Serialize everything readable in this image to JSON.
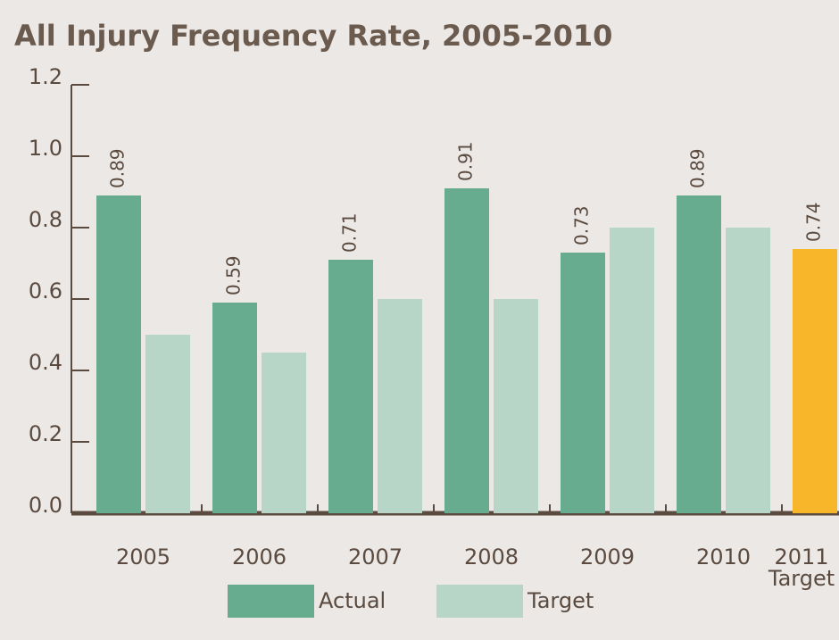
{
  "chart_data": {
    "type": "bar",
    "title": "All Injury Frequency Rate, 2005-2010",
    "categories": [
      "2005",
      "2006",
      "2007",
      "2008",
      "2009",
      "2010",
      "2011 Target"
    ],
    "series": [
      {
        "name": "Actual",
        "color": "#68ac8f",
        "values": [
          0.89,
          0.59,
          0.71,
          0.91,
          0.73,
          0.89,
          null
        ]
      },
      {
        "name": "Target",
        "color": "#b8d6c7",
        "values": [
          0.5,
          0.45,
          0.6,
          0.6,
          0.8,
          0.8,
          null
        ]
      }
    ],
    "target_2011": {
      "value": 0.74,
      "color": "#f8b72a"
    },
    "ylim": [
      0,
      1.2
    ],
    "yticks": [
      {
        "value": 0,
        "label": "0.0"
      },
      0.2,
      0.4,
      0.6,
      0.8,
      {
        "value": 1,
        "label": "1.0"
      },
      1.2
    ],
    "value_labels_on": [
      "Actual"
    ]
  }
}
